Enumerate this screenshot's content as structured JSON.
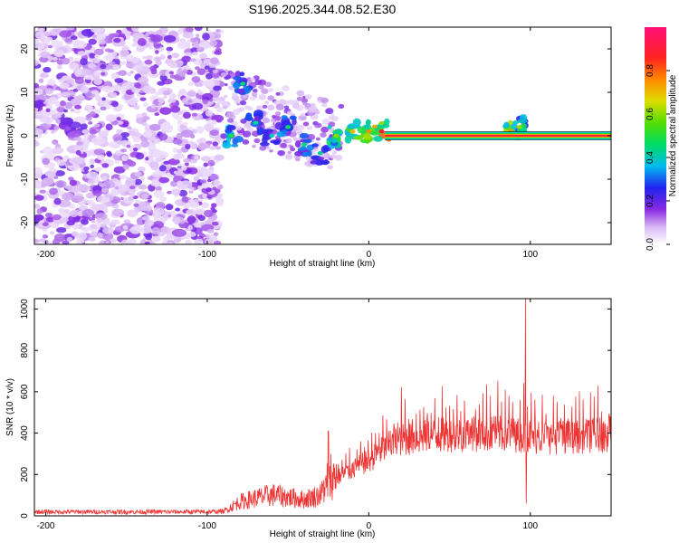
{
  "title": "S196.2025.344.08.52.E30",
  "chart_data": [
    {
      "type": "heatmap",
      "name": "spectrogram",
      "title": "S196.2025.344.08.52.E30",
      "xlabel": "Height of straight line (km)",
      "ylabel": "Frequency (Hz)",
      "xlim": [
        -207,
        150
      ],
      "ylim": [
        -25,
        25
      ],
      "x_ticks": [
        -200,
        -100,
        0,
        100
      ],
      "y_ticks": [
        -20,
        -10,
        0,
        10,
        20
      ],
      "colorbar": {
        "label": "Normalized spectral amplitude",
        "range": [
          0,
          1
        ],
        "ticks": [
          0.0,
          0.2,
          0.4,
          0.6,
          0.8
        ]
      },
      "blobs": [
        {
          "x": -85,
          "y": 0,
          "v": 0.35
        },
        {
          "x": -78,
          "y": 12,
          "v": 0.3
        },
        {
          "x": -70,
          "y": 3,
          "v": 0.28
        },
        {
          "x": -60,
          "y": 0,
          "v": 0.25
        },
        {
          "x": -50,
          "y": 2,
          "v": 0.32
        },
        {
          "x": -40,
          "y": -2,
          "v": 0.3
        },
        {
          "x": -30,
          "y": -4,
          "v": 0.27
        },
        {
          "x": -20,
          "y": 0,
          "v": 0.45
        },
        {
          "x": -10,
          "y": 1,
          "v": 0.55
        },
        {
          "x": 0,
          "y": 1,
          "v": 0.6
        },
        {
          "x": 8,
          "y": 1,
          "v": 0.75
        },
        {
          "x": 88,
          "y": 1,
          "v": 0.6
        },
        {
          "x": 93,
          "y": 2,
          "v": 0.45
        }
      ],
      "band": {
        "x_start": 10,
        "x_end": 150,
        "y": 0,
        "v": 1.0
      }
    },
    {
      "type": "line",
      "name": "snr",
      "xlabel": "Height of straight line (km)",
      "ylabel": "SNR (10 * v/v)",
      "xlim": [
        -207,
        150
      ],
      "ylim": [
        0,
        1050
      ],
      "x_ticks": [
        -200,
        -100,
        0,
        100
      ],
      "y_ticks": [
        0,
        200,
        400,
        600,
        800,
        1000
      ],
      "color": "#ee3333",
      "profile": [
        {
          "x": -207,
          "y": 15
        },
        {
          "x": -100,
          "y": 15
        },
        {
          "x": -90,
          "y": 18
        },
        {
          "x": -80,
          "y": 60
        },
        {
          "x": -60,
          "y": 90
        },
        {
          "x": -40,
          "y": 70
        },
        {
          "x": -30,
          "y": 90
        },
        {
          "x": -20,
          "y": 180
        },
        {
          "x": -10,
          "y": 220
        },
        {
          "x": 0,
          "y": 260
        },
        {
          "x": 10,
          "y": 320
        },
        {
          "x": 20,
          "y": 360
        },
        {
          "x": 40,
          "y": 380
        },
        {
          "x": 60,
          "y": 385
        },
        {
          "x": 80,
          "y": 390
        },
        {
          "x": 95,
          "y": 380
        },
        {
          "x": 110,
          "y": 370
        },
        {
          "x": 130,
          "y": 375
        },
        {
          "x": 150,
          "y": 385
        }
      ],
      "spikes": [
        {
          "x": 97,
          "y": 1050
        },
        {
          "x": 97.5,
          "y": 60
        },
        {
          "x": -25,
          "y": 410
        }
      ]
    }
  ]
}
